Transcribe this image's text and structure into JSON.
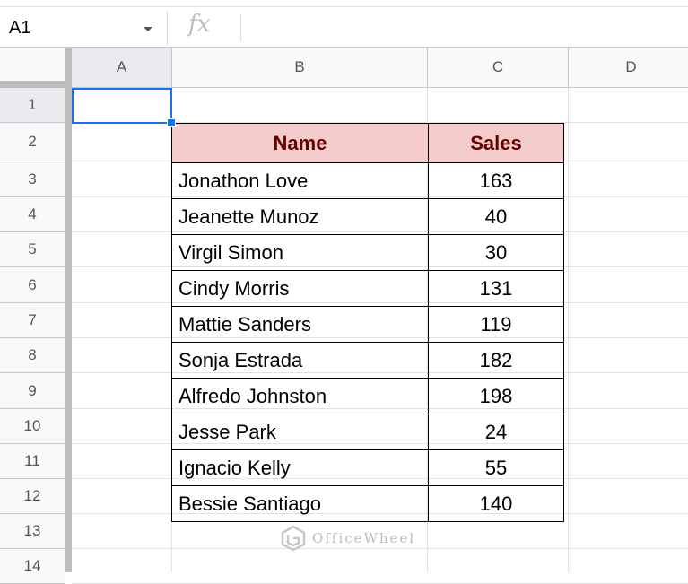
{
  "formula_bar": {
    "cell_ref": "A1",
    "fx_label": "fx",
    "formula": ""
  },
  "columns": [
    "A",
    "B",
    "C",
    "D"
  ],
  "rows": [
    "1",
    "2",
    "3",
    "4",
    "5",
    "6",
    "7",
    "8",
    "9",
    "10",
    "11",
    "12",
    "13",
    "14"
  ],
  "table": {
    "headers": [
      "Name",
      "Sales"
    ],
    "rows": [
      [
        "Jonathon Love",
        "163"
      ],
      [
        "Jeanette Munoz",
        "40"
      ],
      [
        "Virgil Simon",
        "30"
      ],
      [
        "Cindy Morris",
        "131"
      ],
      [
        "Mattie Sanders",
        "119"
      ],
      [
        "Sonja Estrada",
        "182"
      ],
      [
        "Alfredo Johnston",
        "198"
      ],
      [
        "Jesse Park",
        "24"
      ],
      [
        "Ignacio Kelly",
        "55"
      ],
      [
        "Bessie Santiago",
        "140"
      ]
    ]
  },
  "colors": {
    "header_fill": "#f4cccc",
    "header_text": "#660000",
    "selection": "#1a73e8"
  },
  "watermark": "OfficeWheel"
}
